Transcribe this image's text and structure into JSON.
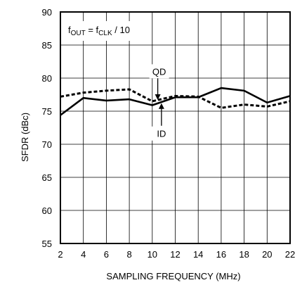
{
  "chart_data": {
    "type": "line",
    "xlabel": "SAMPLING FREQUENCY (MHz)",
    "ylabel": "SFDR (dBc)",
    "xlim": [
      2,
      22
    ],
    "ylim": [
      55,
      90
    ],
    "x_ticks": [
      "2",
      "4",
      "6",
      "8",
      "10",
      "12",
      "14",
      "16",
      "18",
      "20",
      "22"
    ],
    "y_ticks": [
      "55",
      "60",
      "65",
      "70",
      "75",
      "80",
      "85",
      "90"
    ],
    "grid": true,
    "annotation": {
      "base": "f",
      "sub1": "OUT",
      "mid": " = f",
      "sub2": "CLK",
      "tail": " / 10"
    },
    "series": [
      {
        "name": "QD",
        "style": "dashed",
        "x": [
          2,
          4,
          6,
          8,
          10,
          12,
          14,
          16,
          18,
          20,
          22
        ],
        "y": [
          77.2,
          77.8,
          78.1,
          78.3,
          76.5,
          77.3,
          77.2,
          75.5,
          76.0,
          75.7,
          76.5
        ]
      },
      {
        "name": "ID",
        "style": "solid",
        "x": [
          2,
          4,
          6,
          8,
          10,
          12,
          14,
          16,
          18,
          20,
          22
        ],
        "y": [
          74.4,
          77.0,
          76.6,
          76.8,
          75.9,
          77.1,
          77.1,
          78.5,
          78.1,
          76.3,
          77.3
        ]
      }
    ],
    "labels": [
      {
        "series": "QD",
        "text": "QD",
        "x": 10.6,
        "y": 80.6,
        "arrow_to_y": 76.7
      },
      {
        "series": "ID",
        "text": "ID",
        "x": 10.8,
        "y": 71.2,
        "arrow_to_y": 76.2
      }
    ]
  }
}
